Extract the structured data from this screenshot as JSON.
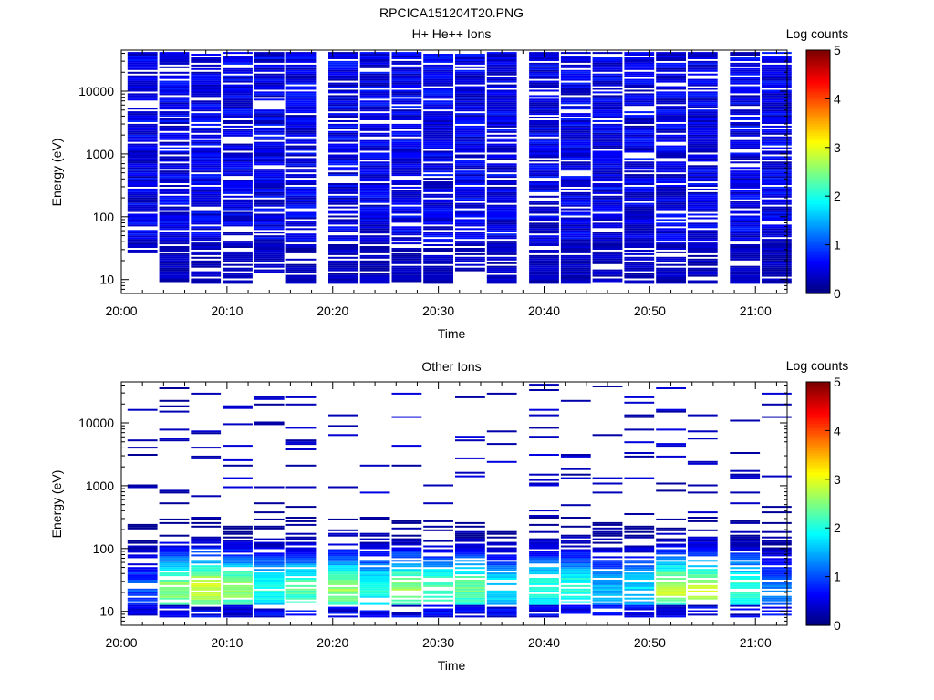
{
  "figure_title": "RPCICA151204T20.PNG",
  "colorbar": {
    "label": "Log counts",
    "ticks": [
      "0",
      "1",
      "2",
      "3",
      "4",
      "5"
    ],
    "range": [
      0,
      5
    ],
    "colormap": "jet"
  },
  "chart_data": [
    {
      "type": "heatmap",
      "title": "H+ He++ Ions",
      "xlabel": "Time",
      "ylabel": "Energy (eV)",
      "y_scale": "log",
      "ylim": [
        6,
        45000
      ],
      "xlim": [
        "20:00",
        "21:03"
      ],
      "x_ticks": [
        "20:00",
        "20:10",
        "20:20",
        "20:30",
        "20:40",
        "20:50",
        "21:00"
      ],
      "y_ticks": [
        "10",
        "100",
        "1000",
        "10000"
      ],
      "time_bins": [
        "20:02",
        "20:05",
        "20:08",
        "20:11",
        "20:14",
        "20:17",
        "20:21",
        "20:24",
        "20:27",
        "20:30",
        "20:33",
        "20:36",
        "20:40",
        "20:43",
        "20:46",
        "20:49",
        "20:52",
        "20:55",
        "20:59",
        "21:02"
      ],
      "energy_range_bins_ev": [
        8,
        42000
      ],
      "bins_per_decade": 29,
      "predominant_level": 0.5,
      "low_energy_cutoff_ev": [
        25,
        9,
        8,
        8,
        12,
        8,
        8,
        8,
        9,
        8,
        12,
        8,
        8,
        8,
        9,
        8,
        8,
        8,
        8,
        8
      ]
    },
    {
      "type": "heatmap",
      "title": "Other Ions",
      "xlabel": "Time",
      "ylabel": "Energy (eV)",
      "y_scale": "log",
      "ylim": [
        6,
        45000
      ],
      "xlim": [
        "20:00",
        "21:03"
      ],
      "x_ticks": [
        "20:00",
        "20:10",
        "20:20",
        "20:30",
        "20:40",
        "20:50",
        "21:00"
      ],
      "y_ticks": [
        "10",
        "100",
        "1000",
        "10000"
      ],
      "time_bins": [
        "20:02",
        "20:05",
        "20:08",
        "20:11",
        "20:14",
        "20:17",
        "20:21",
        "20:24",
        "20:27",
        "20:30",
        "20:33",
        "20:36",
        "20:40",
        "20:43",
        "20:46",
        "20:49",
        "20:52",
        "20:55",
        "20:59",
        "21:02"
      ],
      "peak_level_by_time": [
        1.0,
        2.6,
        2.9,
        2.6,
        2.0,
        2.3,
        2.6,
        2.0,
        2.6,
        2.3,
        2.4,
        1.8,
        2.1,
        2.1,
        1.5,
        1.7,
        2.8,
        2.8,
        2.2,
        1.2
      ]
    }
  ]
}
